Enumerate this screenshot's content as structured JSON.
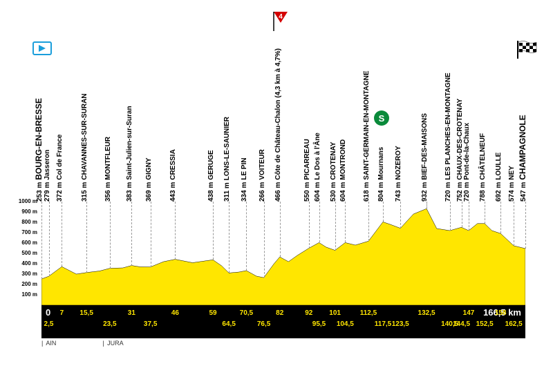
{
  "type": "elevation-profile",
  "stage": {
    "start": "BOURG-EN-BRESSE",
    "finish": "CHAMPAGNOLE",
    "total_km": 166.5
  },
  "y_axis": {
    "label": "m",
    "min": 0,
    "max": 1000,
    "ticks": [
      100,
      200,
      300,
      400,
      500,
      600,
      700,
      800,
      900,
      1000
    ]
  },
  "x_axis": {
    "zero_label": "0",
    "total_label": "166,5 km",
    "ticks_top": [
      7,
      15.5,
      31,
      46,
      59,
      70.5,
      82,
      92,
      101,
      112.5,
      132.5,
      147,
      158
    ],
    "ticks_bottom": [
      2.5,
      23.5,
      37.5,
      64.5,
      76.5,
      95.5,
      104.5,
      117.5,
      123.5,
      140.5,
      144.5,
      152.5,
      162.5
    ]
  },
  "colors": {
    "profile_fill": "#ffe600",
    "x_axis_bg": "#000000",
    "x_tick_color": "#ffe600",
    "x_label_color": "#ffffff",
    "waypoint_line": "#999999",
    "kom_flag": "#d40000",
    "sprint_flag": "#0a8a3a",
    "start_flag_border": "#1a9edb",
    "background": "#ffffff"
  },
  "elevation_profile": [
    [
      0,
      253
    ],
    [
      2.5,
      279
    ],
    [
      7,
      372
    ],
    [
      12,
      300
    ],
    [
      15.5,
      315
    ],
    [
      20,
      330
    ],
    [
      23.5,
      356
    ],
    [
      28,
      360
    ],
    [
      31,
      383
    ],
    [
      34,
      370
    ],
    [
      37.5,
      369
    ],
    [
      42,
      420
    ],
    [
      46,
      443
    ],
    [
      52,
      410
    ],
    [
      59,
      438
    ],
    [
      62,
      380
    ],
    [
      64.5,
      311
    ],
    [
      68,
      320
    ],
    [
      70.5,
      334
    ],
    [
      74,
      280
    ],
    [
      76.5,
      266
    ],
    [
      80,
      400
    ],
    [
      82,
      466
    ],
    [
      85,
      420
    ],
    [
      88,
      480
    ],
    [
      92,
      550
    ],
    [
      95.5,
      604
    ],
    [
      98,
      560
    ],
    [
      101,
      530
    ],
    [
      104.5,
      604
    ],
    [
      108,
      580
    ],
    [
      112.5,
      618
    ],
    [
      117.5,
      804
    ],
    [
      120,
      780
    ],
    [
      123.5,
      743
    ],
    [
      128,
      880
    ],
    [
      132.5,
      932
    ],
    [
      136,
      740
    ],
    [
      140.5,
      720
    ],
    [
      144.5,
      752
    ],
    [
      147,
      720
    ],
    [
      150,
      788
    ],
    [
      152.5,
      788
    ],
    [
      155,
      720
    ],
    [
      158,
      692
    ],
    [
      162.5,
      574
    ],
    [
      166.5,
      547
    ]
  ],
  "kom": {
    "km": 82,
    "category": "4",
    "detail": "(4,3 km à 4,7%)"
  },
  "sprint": {
    "km": 117.5,
    "label": "S"
  },
  "waypoints": [
    {
      "km": 0,
      "elev": 253,
      "name": "BOURG-EN-BRESSE",
      "terminal": true
    },
    {
      "km": 2.5,
      "elev": 279,
      "name": "Jasseron"
    },
    {
      "km": 7,
      "elev": 372,
      "name": "Col de France"
    },
    {
      "km": 15.5,
      "elev": 315,
      "name": "CHAVANNES-SUR-SURAN"
    },
    {
      "km": 23.5,
      "elev": 356,
      "name": "MONTFLEUR"
    },
    {
      "km": 31,
      "elev": 383,
      "name": "Saint-Julien-sur-Suran"
    },
    {
      "km": 37.5,
      "elev": 369,
      "name": "GIGNY"
    },
    {
      "km": 46,
      "elev": 443,
      "name": "CRESSIA"
    },
    {
      "km": 59,
      "elev": 438,
      "name": "GERUGE"
    },
    {
      "km": 64.5,
      "elev": 311,
      "name": "LONS-LE-SAUNIER"
    },
    {
      "km": 70.5,
      "elev": 334,
      "name": "LE PIN"
    },
    {
      "km": 76.5,
      "elev": 266,
      "name": "VOITEUR"
    },
    {
      "km": 82,
      "elev": 466,
      "name": "Côte de Château-Chalon",
      "kom": true
    },
    {
      "km": 92,
      "elev": 550,
      "name": "PICARREAU"
    },
    {
      "km": 95.5,
      "elev": 604,
      "name": "Le Dos à l'Âne"
    },
    {
      "km": 101,
      "elev": 530,
      "name": "CROTENAY"
    },
    {
      "km": 104.5,
      "elev": 604,
      "name": "MONTROND"
    },
    {
      "km": 112.5,
      "elev": 618,
      "name": "SAINT-GERMAIN-EN-MONTAGNE"
    },
    {
      "km": 117.5,
      "elev": 804,
      "name": "Mournans",
      "sprint": true
    },
    {
      "km": 123.5,
      "elev": 743,
      "name": "NOZEROY"
    },
    {
      "km": 132.5,
      "elev": 932,
      "name": "BIEF-DES-MAISONS"
    },
    {
      "km": 140.5,
      "elev": 720,
      "name": "LES PLANCHES-EN-MONTAGNE"
    },
    {
      "km": 144.5,
      "elev": 752,
      "name": "CHAUX-DES-CROTENAY"
    },
    {
      "km": 147,
      "elev": 720,
      "name": "Pont-de-la-Chaux"
    },
    {
      "km": 152.5,
      "elev": 788,
      "name": "CHÂTELNEUF"
    },
    {
      "km": 158,
      "elev": 692,
      "name": "LOULLE"
    },
    {
      "km": 162.5,
      "elev": 574,
      "name": "NEY"
    },
    {
      "km": 166.5,
      "elev": 547,
      "name": "CHAMPAGNOLE",
      "terminal": true
    }
  ],
  "regions": [
    {
      "km": 0,
      "name": "AIN"
    },
    {
      "km": 21,
      "name": "JURA"
    }
  ]
}
